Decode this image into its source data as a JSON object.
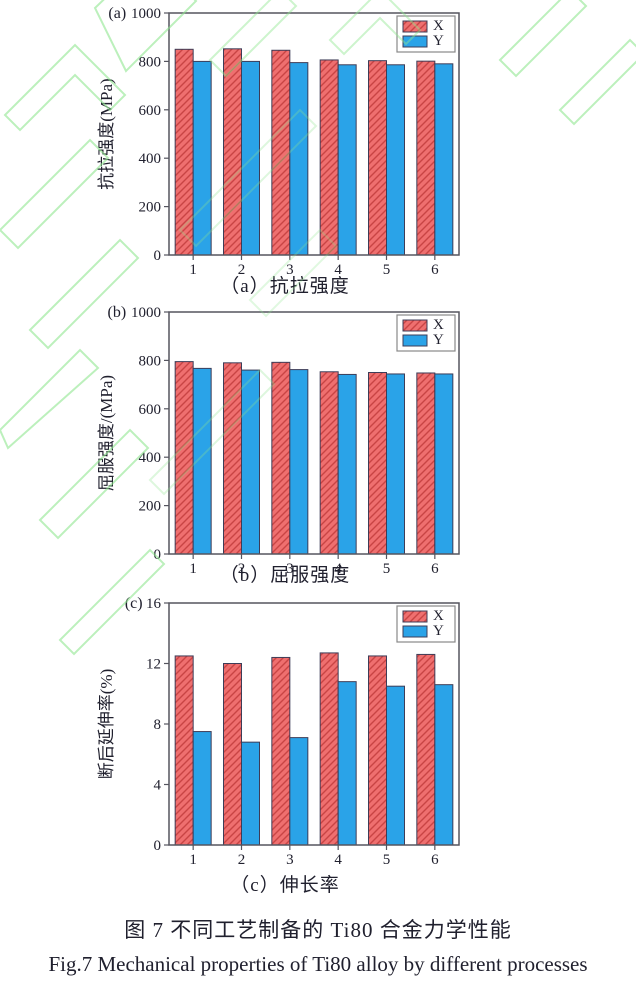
{
  "page": {
    "caption_zh": "图 7 不同工艺制备的 Ti80 合金力学性能",
    "caption_en": "Fig.7 Mechanical properties of Ti80 alloy by different processes"
  },
  "colors": {
    "bar_x_fill": "#ef6f6f",
    "bar_x_hatch": "#c94444",
    "bar_y_fill": "#2aa3e8",
    "bar_edge": "#3d3d58",
    "axis": "#55555f",
    "text": "#20202e",
    "legend_border": "#888888",
    "watermark": "#8fe68f"
  },
  "chart_data": [
    {
      "type": "bar",
      "panel": "(a)",
      "caption": "（a）抗拉强度",
      "ylabel": "抗拉强度(MPa)",
      "xlabel": "",
      "ylim": [
        0,
        1000
      ],
      "yticks": [
        0,
        200,
        400,
        600,
        800,
        1000
      ],
      "categories": [
        "1",
        "2",
        "3",
        "4",
        "5",
        "6"
      ],
      "legend": [
        "X",
        "Y"
      ],
      "legend_position": "top-right",
      "grid": false,
      "series": [
        {
          "name": "X",
          "values": [
            850,
            852,
            846,
            806,
            803,
            801
          ]
        },
        {
          "name": "Y",
          "values": [
            800,
            800,
            795,
            786,
            786,
            790
          ]
        }
      ]
    },
    {
      "type": "bar",
      "panel": "(b)",
      "caption": "（b）屈服强度",
      "ylabel": "屈服强度/(MPa)",
      "xlabel": "",
      "ylim": [
        0,
        1000
      ],
      "yticks": [
        0,
        200,
        400,
        600,
        800,
        1000
      ],
      "categories": [
        "1",
        "2",
        "3",
        "4",
        "5",
        "6"
      ],
      "legend": [
        "X",
        "Y"
      ],
      "legend_position": "top-right",
      "grid": false,
      "series": [
        {
          "name": "X",
          "values": [
            795,
            790,
            792,
            753,
            750,
            748
          ]
        },
        {
          "name": "Y",
          "values": [
            767,
            760,
            762,
            742,
            744,
            744
          ]
        }
      ]
    },
    {
      "type": "bar",
      "panel": "(c)",
      "caption": "（c）伸长率",
      "ylabel": "断后延伸率(%)",
      "xlabel": "",
      "ylim": [
        0,
        16
      ],
      "yticks": [
        0,
        4,
        8,
        12,
        16
      ],
      "categories": [
        "1",
        "2",
        "3",
        "4",
        "5",
        "6"
      ],
      "legend": [
        "X",
        "Y"
      ],
      "legend_position": "top-right",
      "grid": false,
      "series": [
        {
          "name": "X",
          "values": [
            12.5,
            12.0,
            12.4,
            12.7,
            12.5,
            12.6
          ]
        },
        {
          "name": "Y",
          "values": [
            7.5,
            6.8,
            7.1,
            10.8,
            10.5,
            10.6
          ]
        }
      ]
    }
  ]
}
